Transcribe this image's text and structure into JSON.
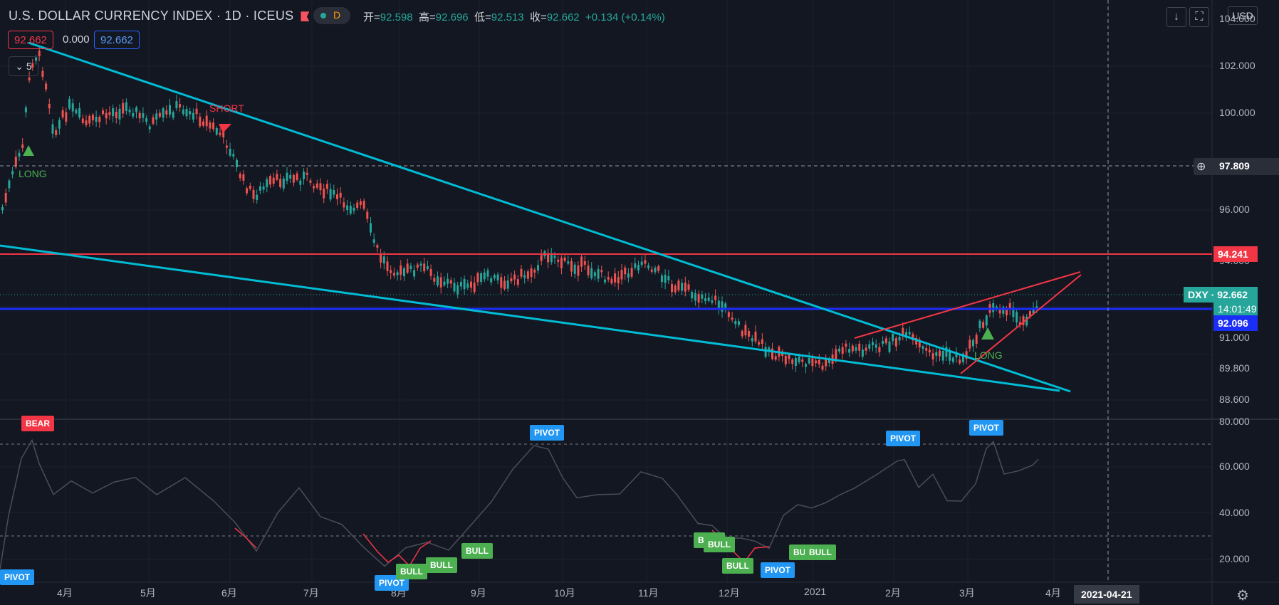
{
  "header": {
    "title": "U.S. DOLLAR CURRENCY INDEX · 1D · ICEUS",
    "status_letter": "D",
    "ohlc_labels": {
      "open": "开=",
      "high": "高=",
      "low": "低=",
      "close": "收="
    },
    "ohlc_values": {
      "open": "92.598",
      "high": "92.696",
      "low": "92.513",
      "close": "92.662"
    },
    "change": "+0.134 (+0.14%)",
    "currency_button": "USD",
    "download_icon": "arrow-down-icon",
    "fullscreen_icon": "fullscreen-icon"
  },
  "indicator": {
    "value_red": "92.662",
    "value_plain": "0.000",
    "value_blue": "92.662",
    "collapse_label": "5"
  },
  "price_axis": {
    "labels": [
      "102.000",
      "100.000",
      "96.000",
      "91.000",
      "89.800",
      "88.600"
    ],
    "partial_labels": [
      "104.000",
      "94.000"
    ],
    "crosshair_price": "97.809",
    "resistance_price": "94.241",
    "symbol": "DXY",
    "last_price": "92.662",
    "countdown": "14:01:49",
    "support_price": "92.096",
    "colors": {
      "last": "#26a69a",
      "resistance": "#f23645",
      "support": "#2962ff"
    }
  },
  "osc_axis": {
    "labels": [
      "80.000",
      "60.000",
      "40.000",
      "20.000"
    ]
  },
  "time_axis": {
    "labels": [
      "4月",
      "5月",
      "6月",
      "7月",
      "8月",
      "9月",
      "10月",
      "11月",
      "12月",
      "2021",
      "2月",
      "3月",
      "4月"
    ],
    "crosshair_date": "2021-04-21",
    "settings_icon": "gear-icon"
  },
  "signals": {
    "long": "LONG",
    "short": "SHORT",
    "pivot": "PIVOT",
    "bull": "BULL",
    "bear": "BEAR",
    "bull_color": "#4caf50",
    "pivot_color": "#2196f3",
    "bear_color": "#f23645"
  },
  "chart_data": {
    "type": "candlestick",
    "series": "DXY",
    "ylim": [
      87.6,
      104.5
    ],
    "horizontal_levels": [
      94.241,
      92.096
    ],
    "crosshair": {
      "price": 97.809,
      "date": "2021-04-21"
    },
    "oscillator": {
      "ylim": [
        14,
        80
      ],
      "bands": [
        70,
        30
      ]
    }
  }
}
